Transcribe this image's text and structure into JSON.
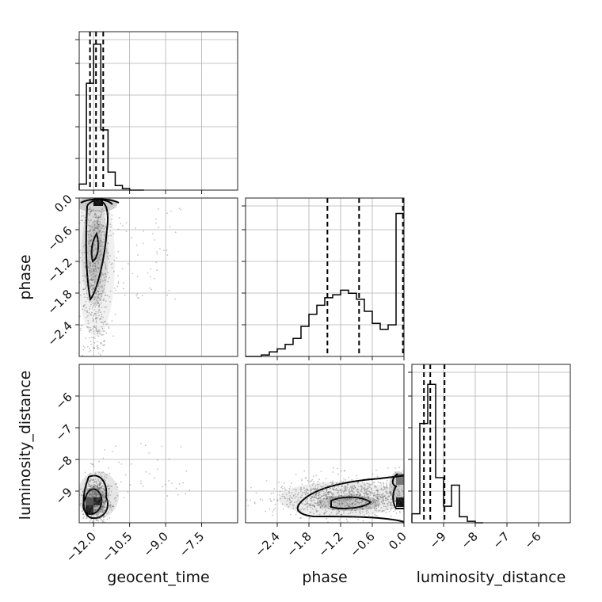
{
  "chart_data": {
    "type": "corner",
    "parameters": [
      {
        "name": "geocent_time",
        "label": "geocent_time",
        "range": [
          -12.6,
          -6.0
        ],
        "ticks": [
          "−12.0",
          "−10.5",
          "−9.0",
          "−7.5"
        ],
        "tick_values": [
          -12.0,
          -10.5,
          -9.0,
          -7.5
        ]
      },
      {
        "name": "phase",
        "label": "phase",
        "range": [
          -3.0,
          0.0
        ],
        "ticks": [
          "−2.4",
          "−1.8",
          "−1.2",
          "−0.6",
          "0.0"
        ],
        "tick_values": [
          -2.4,
          -1.8,
          -1.2,
          -0.6,
          0.0
        ]
      },
      {
        "name": "luminosity_distance",
        "label": "luminosity_distance",
        "range": [
          -10.0,
          -5.0
        ],
        "ticks": [
          "−9",
          "−8",
          "−7",
          "−6"
        ],
        "tick_values": [
          -9,
          -8,
          -7,
          -6
        ]
      }
    ],
    "y_ticks": {
      "phase": [
        "0.0",
        "−0.6",
        "−1.2",
        "−1.8",
        "−2.4"
      ],
      "luminosity_distance": [
        "−6",
        "−7",
        "−8",
        "−9"
      ]
    },
    "histograms": {
      "geocent_time": {
        "bin_edges": [
          -12.6,
          -12.3,
          -12.0,
          -11.7,
          -11.4,
          -11.1,
          -10.8,
          -10.5,
          -10.2,
          -9.9
        ],
        "counts": [
          0.04,
          0.71,
          0.97,
          0.4,
          0.12,
          0.03,
          0.01,
          0.0,
          0.0
        ],
        "quantiles": [
          -12.15,
          -11.9,
          -11.6
        ]
      },
      "phase": {
        "bin_edges": [
          -3.0,
          -2.85,
          -2.7,
          -2.55,
          -2.4,
          -2.25,
          -2.1,
          -1.95,
          -1.8,
          -1.65,
          -1.5,
          -1.35,
          -1.2,
          -1.05,
          -0.9,
          -0.75,
          -0.6,
          -0.45,
          -0.3,
          -0.15,
          0.0
        ],
        "counts": [
          0.0,
          0.0,
          0.01,
          0.03,
          0.05,
          0.08,
          0.12,
          0.2,
          0.28,
          0.34,
          0.39,
          0.41,
          0.44,
          0.42,
          0.38,
          0.3,
          0.22,
          0.18,
          0.21,
          0.95
        ],
        "quantiles": [
          -1.45,
          -0.85,
          -0.02
        ]
      },
      "luminosity_distance": {
        "bin_edges": [
          -10.0,
          -9.75,
          -9.5,
          -9.25,
          -9.0,
          -8.75,
          -8.5,
          -8.25,
          -8.0,
          -7.75
        ],
        "counts": [
          0.06,
          0.66,
          0.92,
          0.3,
          0.11,
          0.25,
          0.04,
          0.01,
          0.0
        ],
        "quantiles": [
          -9.62,
          -9.42,
          -8.97
        ]
      }
    },
    "grid": true,
    "quantile_line_style": "dashed"
  },
  "colors": {
    "axes": "#222222",
    "grid": "#b0b0b0",
    "ink": "#000000",
    "samples": "#555555"
  }
}
